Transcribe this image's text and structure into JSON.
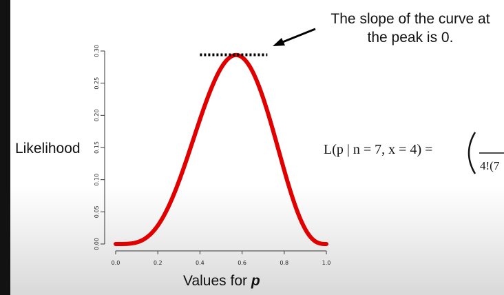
{
  "chart_data": {
    "type": "line",
    "curve": "binomial likelihood",
    "n": 7,
    "x_successes": 4,
    "x_range": [
      0,
      1
    ],
    "ylim": [
      0,
      0.3
    ],
    "x_ticks": [
      "0.0",
      "0.2",
      "0.4",
      "0.6",
      "0.8",
      "1.0"
    ],
    "y_ticks": [
      "0.00",
      "0.05",
      "0.10",
      "0.15",
      "0.20",
      "0.25",
      "0.30"
    ],
    "peak": {
      "x": 0.571,
      "y": 0.293
    },
    "tangent_line": {
      "x_from": 0.4,
      "x_to": 0.72,
      "y": 0.293,
      "style": "dotted"
    },
    "series": [
      {
        "color": "#e00000"
      }
    ],
    "xlabel_text": "Values for ",
    "xlabel_var": "p",
    "ylabel": "Likelihood",
    "grid": false
  },
  "annotation": {
    "line1": "The slope of the curve at",
    "line2": "the peak is 0."
  },
  "formula": {
    "lhs": "L(p | n = 7, x = 4) = ",
    "rhs_partial": "4!(7"
  },
  "colors": {
    "curve": "#e00000",
    "text": "#111111",
    "arrow": "#000000"
  }
}
